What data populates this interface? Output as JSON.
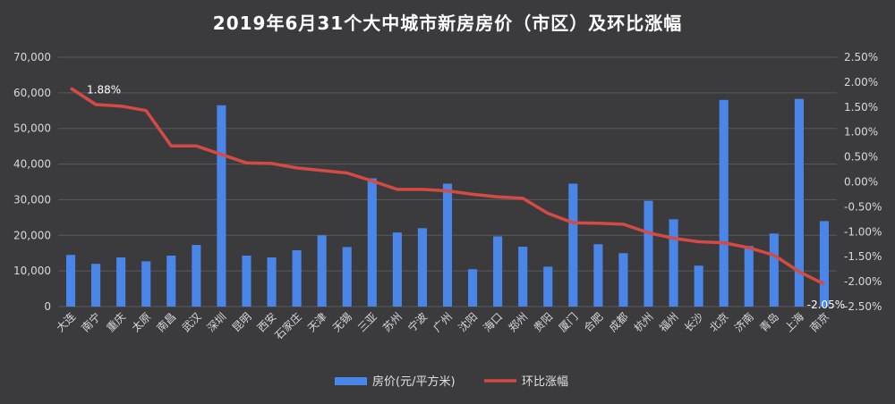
{
  "chart_data": {
    "type": "bar",
    "title": "2019年6月31个大中城市新房房价（市区）及环比涨幅",
    "categories": [
      "大连",
      "南宁",
      "重庆",
      "太原",
      "南昌",
      "武汉",
      "深圳",
      "昆明",
      "西安",
      "石家庄",
      "天津",
      "无锡",
      "三亚",
      "苏州",
      "宁波",
      "广州",
      "沈阳",
      "海口",
      "郑州",
      "贵阳",
      "厦门",
      "合肥",
      "成都",
      "杭州",
      "福州",
      "长沙",
      "北京",
      "济南",
      "青岛",
      "上海",
      "南京"
    ],
    "series": [
      {
        "name": "房价(元/平方米)",
        "type": "bar",
        "axis": "left",
        "color": "#4a86e8",
        "values": [
          14500,
          12000,
          13800,
          12700,
          14300,
          17300,
          56500,
          14300,
          13800,
          15800,
          20000,
          16700,
          36000,
          20800,
          22000,
          34500,
          10500,
          19700,
          16800,
          11200,
          34500,
          17500,
          15000,
          29700,
          24500,
          11500,
          58000,
          17000,
          20500,
          58300,
          24000
        ]
      },
      {
        "name": "环比涨幅",
        "type": "line",
        "axis": "right",
        "color": "#d44a45",
        "values": [
          1.88,
          1.55,
          1.52,
          1.43,
          0.72,
          0.72,
          0.55,
          0.38,
          0.37,
          0.28,
          0.23,
          0.18,
          0.02,
          -0.15,
          -0.15,
          -0.18,
          -0.25,
          -0.3,
          -0.33,
          -0.63,
          -0.82,
          -0.83,
          -0.85,
          -1.02,
          -1.13,
          -1.2,
          -1.22,
          -1.32,
          -1.47,
          -1.8,
          -2.05
        ]
      }
    ],
    "y_left": {
      "min": 0,
      "max": 70000,
      "ticks": [
        "0",
        "10,000",
        "20,000",
        "30,000",
        "40,000",
        "50,000",
        "60,000",
        "70,000"
      ]
    },
    "y_right": {
      "min": -2.5,
      "max": 2.5,
      "ticks": [
        "-2.50%",
        "-2.00%",
        "-1.50%",
        "-1.00%",
        "-0.50%",
        "0.00%",
        "0.50%",
        "1.00%",
        "1.50%",
        "2.00%",
        "2.50%"
      ]
    },
    "data_labels": [
      {
        "series": 1,
        "index": 0,
        "text": "1.88%"
      },
      {
        "series": 1,
        "index": 30,
        "text": "-2.05%"
      }
    ],
    "grid": true,
    "legend": "bottom",
    "colors": {
      "background": "#3b3b3d",
      "grid": "#5a5a5c",
      "text": "#d8d8d8"
    }
  }
}
